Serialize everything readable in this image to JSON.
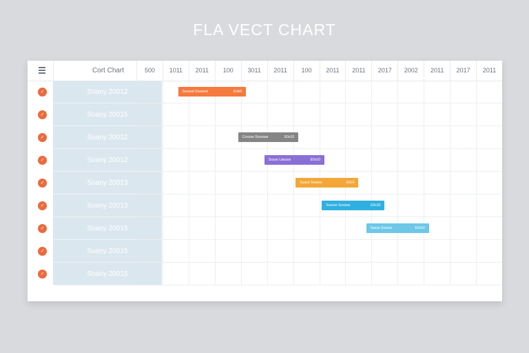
{
  "title": "FLA VECT CHART",
  "header": {
    "label": "Cort Chart"
  },
  "chart_data": {
    "type": "gantt",
    "columns": [
      "500",
      "1011",
      "2011",
      "100",
      "3011",
      "2011",
      "100",
      "2011",
      "2011",
      "2017",
      "2002",
      "2011",
      "2017",
      "2011"
    ],
    "rows": [
      {
        "label": "Soany 20012",
        "bar": {
          "start": 1.6,
          "end": 4.2,
          "text_left": "Soused Soswool",
          "text_right": "E0sl0",
          "color": "#f47a3e"
        }
      },
      {
        "label": "Soany 20015",
        "bar": null
      },
      {
        "label": "Soany 20012",
        "bar": {
          "start": 3.9,
          "end": 6.2,
          "text_left": "Cosuse Sosvase",
          "text_right": "E0s10",
          "color": "#858585"
        }
      },
      {
        "label": "Soany 20012",
        "bar": {
          "start": 4.9,
          "end": 7.2,
          "text_left": "Sosse Uanase",
          "text_right": "E0s10",
          "color": "#8a70d6"
        }
      },
      {
        "label": "Soany 20013",
        "bar": {
          "start": 6.1,
          "end": 8.5,
          "text_left": "Suuse Sosase",
          "text_right": "E0L0",
          "color": "#f4a638"
        }
      },
      {
        "label": "Soany 20013",
        "bar": {
          "start": 7.1,
          "end": 9.5,
          "text_left": "Sosvse Sosisse",
          "text_right": "E0s10",
          "color": "#2fb0e0"
        }
      },
      {
        "label": "Soany 20015",
        "bar": {
          "start": 8.8,
          "end": 11.2,
          "text_left": "Sasse Sossse",
          "text_right": "E0s10",
          "color": "#6dc8e8"
        }
      },
      {
        "label": "Soany 20015",
        "bar": null
      },
      {
        "label": "Soany 20015",
        "bar": null
      }
    ]
  }
}
